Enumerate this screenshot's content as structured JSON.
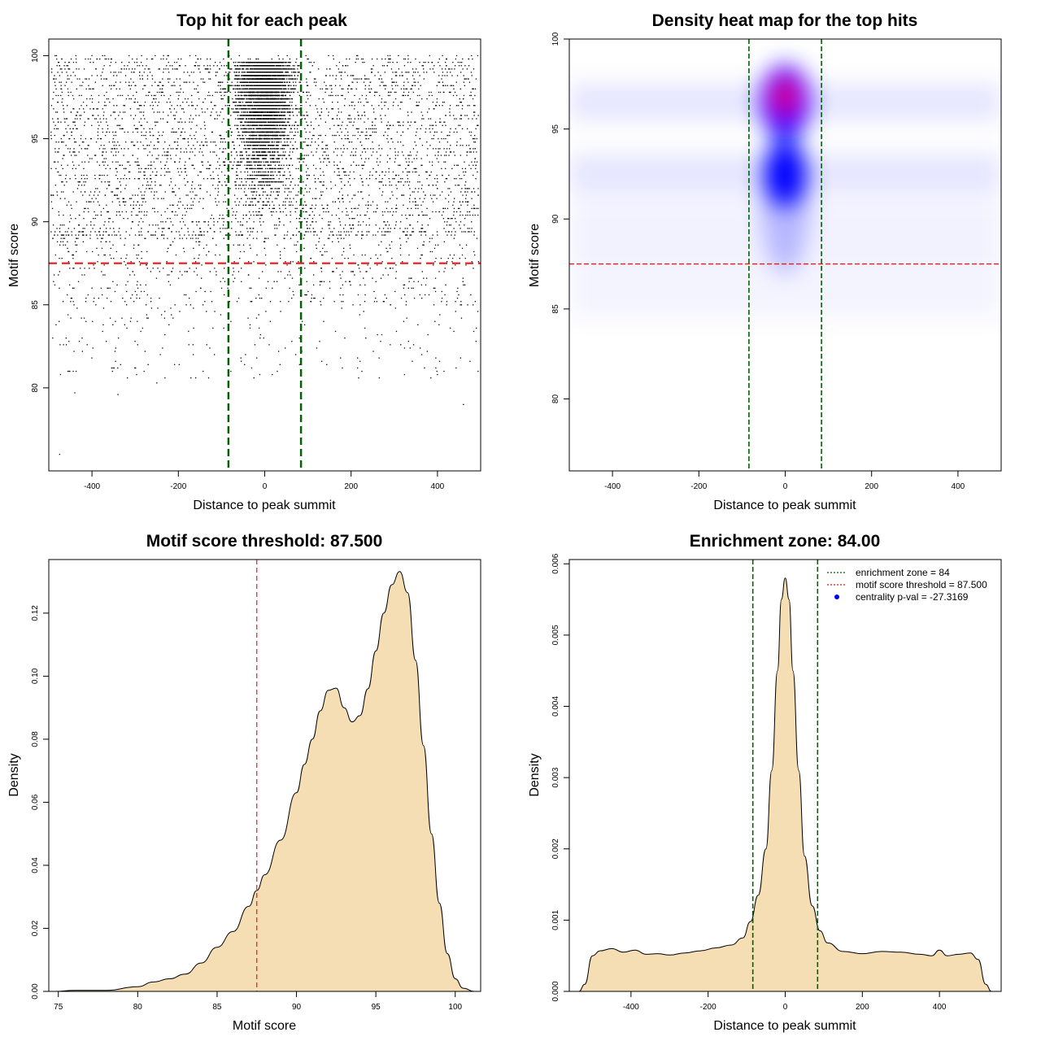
{
  "colors": {
    "threshold_line": "#e41a1c",
    "zone_line": "#006400",
    "density_fill": "#f5deb3",
    "heat_low": "#ffffff",
    "heat_mid": "#0000ff",
    "heat_high": "#ff0000",
    "legend_marker": "#0000ff"
  },
  "chart_data": [
    {
      "id": "top-hits-scatter",
      "type": "scatter",
      "title": "Top hit for each peak",
      "xlabel": "Distance to peak summit",
      "ylabel": "Motif score",
      "xlim": [
        -500,
        500
      ],
      "ylim": [
        75,
        101
      ],
      "xticks": [
        -400,
        -200,
        0,
        200,
        400
      ],
      "yticks": [
        80,
        85,
        90,
        95,
        100
      ],
      "grid": false,
      "reference_lines": {
        "motif_score_threshold": 87.5,
        "enrichment_zone_half_width": 84
      },
      "point_distribution": {
        "n_points_approx": 9000,
        "x_range": [
          -495,
          495
        ],
        "y_range": [
          75.9,
          100
        ],
        "central_cluster": {
          "x_center": 0,
          "x_spread_sd": 30,
          "y_range": [
            86,
            99.7
          ],
          "share": 0.5
        },
        "background": {
          "x_range": [
            -495,
            495
          ],
          "y_range": [
            79,
            100
          ],
          "share": 0.5
        },
        "sparse_outliers": [
          [
            -475,
            76.0
          ],
          [
            -440,
            79.7
          ],
          [
            -340,
            79.6
          ],
          [
            460,
            79.0
          ],
          [
            370,
            81.2
          ],
          [
            -270,
            81.4
          ],
          [
            -250,
            80.3
          ],
          [
            -130,
            80.6
          ]
        ]
      }
    },
    {
      "id": "density-heat-map",
      "type": "heatmap",
      "title": "Density heat map for the top hits",
      "xlabel": "Distance to peak summit",
      "ylabel": "Motif score",
      "xlim": [
        -500,
        500
      ],
      "ylim": [
        76,
        100
      ],
      "xticks": [
        -400,
        -200,
        0,
        200,
        400
      ],
      "yticks": [
        80,
        85,
        90,
        95,
        100
      ],
      "grid": false,
      "reference_lines": {
        "motif_score_threshold": 87.5,
        "enrichment_zone_half_width": 84
      },
      "color_scale": [
        "white",
        "blue",
        "red"
      ],
      "density_peak": {
        "x": 0,
        "y": 96.8
      },
      "secondary_mode": {
        "x": 0,
        "y": 92.5
      },
      "background_bands_y": [
        96.5,
        92.5
      ]
    },
    {
      "id": "motif-score-density",
      "type": "area",
      "title": "Motif score threshold: 87.500",
      "xlabel": "Motif score",
      "ylabel": "Density",
      "xlim": [
        74.4,
        101.6
      ],
      "ylim": [
        0,
        0.137
      ],
      "xticks": [
        75,
        80,
        85,
        90,
        95,
        100
      ],
      "yticks": [
        0.0,
        0.02,
        0.04,
        0.06,
        0.08,
        0.1,
        0.12
      ],
      "ytick_labels": [
        "0.00",
        "0.02",
        "0.04",
        "0.06",
        "0.08",
        "0.10",
        "0.12"
      ],
      "grid": false,
      "reference_lines": {
        "motif_score_threshold": 87.5
      },
      "x": [
        74.8,
        76,
        78,
        80,
        81,
        82,
        83,
        84,
        85,
        86,
        87,
        87.5,
        88,
        89,
        90,
        90.5,
        91,
        91.5,
        92,
        92.5,
        93,
        93.5,
        94,
        94.5,
        95,
        95.5,
        96,
        96.5,
        97,
        97.5,
        98,
        98.5,
        99,
        99.5,
        100,
        100.5,
        101.2
      ],
      "y": [
        0.0,
        0.0003,
        0.0003,
        0.0015,
        0.003,
        0.004,
        0.0055,
        0.009,
        0.014,
        0.019,
        0.027,
        0.032,
        0.037,
        0.048,
        0.063,
        0.072,
        0.08,
        0.089,
        0.0955,
        0.0962,
        0.09,
        0.0855,
        0.0875,
        0.096,
        0.108,
        0.12,
        0.129,
        0.1332,
        0.1265,
        0.105,
        0.078,
        0.05,
        0.028,
        0.012,
        0.004,
        0.001,
        0.0
      ]
    },
    {
      "id": "distance-density",
      "type": "area",
      "title": "Enrichment zone: 84.00",
      "xlabel": "Distance to peak summit",
      "ylabel": "Density",
      "xlim": [
        -560,
        560
      ],
      "ylim": [
        0,
        0.00606
      ],
      "xticks": [
        -400,
        -200,
        0,
        200,
        400
      ],
      "yticks": [
        0.0,
        0.001,
        0.002,
        0.003,
        0.004,
        0.005,
        0.006
      ],
      "ytick_labels": [
        "0.000",
        "0.001",
        "0.002",
        "0.003",
        "0.004",
        "0.005",
        "0.006"
      ],
      "grid": false,
      "reference_lines": {
        "enrichment_zone_half_width": 84
      },
      "legend": {
        "position": "top-right",
        "entries": [
          {
            "label": "enrichment zone = 84",
            "style": "dotted-line",
            "color": "#006400"
          },
          {
            "label": "motif score threshold = 87.500",
            "style": "dotted-line",
            "color": "#e41a1c"
          },
          {
            "label": "centrality p-val = -27.3169",
            "style": "point",
            "color": "#0000ff"
          }
        ]
      },
      "x": [
        -535,
        -520,
        -500,
        -480,
        -450,
        -420,
        -390,
        -360,
        -330,
        -300,
        -260,
        -220,
        -180,
        -140,
        -110,
        -90,
        -70,
        -50,
        -35,
        -20,
        -10,
        0,
        10,
        20,
        35,
        50,
        70,
        90,
        110,
        150,
        200,
        250,
        300,
        350,
        380,
        400,
        420,
        450,
        480,
        500,
        520,
        535
      ],
      "y": [
        0.0,
        0.0001,
        0.0005,
        0.00057,
        0.0006,
        0.00055,
        0.00058,
        0.00052,
        0.00053,
        0.00051,
        0.00054,
        0.00057,
        0.00061,
        0.00065,
        0.00075,
        0.00098,
        0.00135,
        0.002,
        0.0031,
        0.0045,
        0.0055,
        0.0058,
        0.0055,
        0.0045,
        0.0031,
        0.0019,
        0.0012,
        0.00085,
        0.00068,
        0.00056,
        0.00053,
        0.00056,
        0.00055,
        0.00052,
        0.0005,
        0.00058,
        0.0005,
        0.00052,
        0.00054,
        0.00045,
        0.0001,
        0.0
      ]
    }
  ]
}
